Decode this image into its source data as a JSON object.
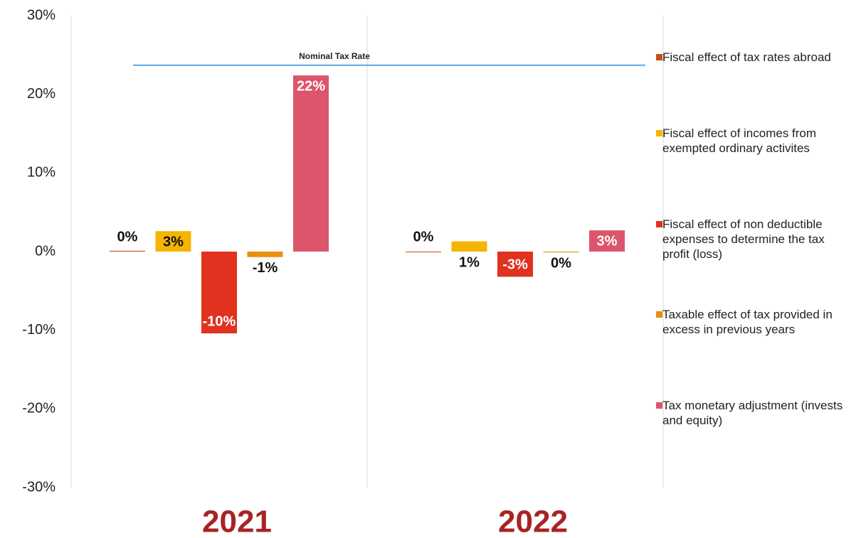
{
  "chart_data": {
    "type": "bar",
    "categories": [
      "2021",
      "2022"
    ],
    "series": [
      {
        "name": "Fiscal effect of tax rates abroad",
        "color": "#c5501a",
        "values": [
          0.1,
          0
        ],
        "value_labels": [
          "0%",
          "0%"
        ]
      },
      {
        "name": "Fiscal effect of incomes from exempted ordinary activites",
        "color": "#f5b400",
        "values": [
          2.6,
          1.3
        ],
        "value_labels": [
          "3%",
          "1%"
        ]
      },
      {
        "name": "Fiscal effect of non deductible expenses to determine the tax profit (loss)",
        "color": "#e0321f",
        "values": [
          -10.4,
          -3.2
        ],
        "value_labels": [
          "-10%",
          "-3%"
        ]
      },
      {
        "name": "Taxable effect of tax provided in excess in previous years",
        "color": "#e8900c",
        "values": [
          -0.7,
          -0.1
        ],
        "value_labels": [
          "-1%",
          "0%"
        ]
      },
      {
        "name": "Tax monetary adjustment (invests and equity)",
        "color": "#dc556c",
        "values": [
          22.4,
          2.7
        ],
        "value_labels": [
          "22%",
          "3%"
        ]
      }
    ],
    "annotations": [
      {
        "label": "Nominal Tax Rate",
        "value": 23.7,
        "color": "#5aa9e6"
      }
    ],
    "ylim": [
      -30,
      30
    ],
    "yticks": [
      {
        "value": -30,
        "label": "-30%"
      },
      {
        "value": -20,
        "label": "-20%"
      },
      {
        "value": -10,
        "label": "-10%"
      },
      {
        "value": 0,
        "label": "0%"
      },
      {
        "value": 10,
        "label": "10%"
      },
      {
        "value": 20,
        "label": "20%"
      },
      {
        "value": 30,
        "label": "30%"
      }
    ],
    "grid": false
  }
}
